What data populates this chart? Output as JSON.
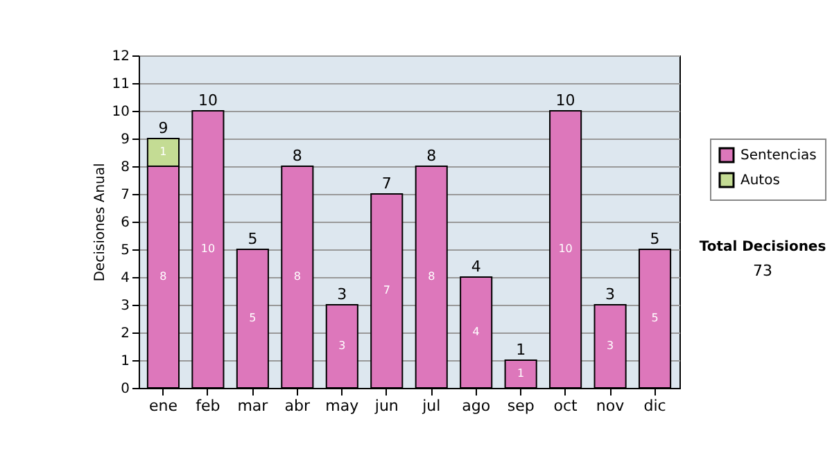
{
  "chart_data": {
    "type": "bar",
    "stacked": true,
    "ylabel": "Decisiones Anual",
    "categories": [
      "ene",
      "feb",
      "mar",
      "abr",
      "may",
      "jun",
      "jul",
      "ago",
      "sep",
      "oct",
      "nov",
      "dic"
    ],
    "series": [
      {
        "name": "Sentencias",
        "color": "#dd77bb",
        "values": [
          8,
          10,
          5,
          8,
          3,
          7,
          8,
          4,
          1,
          10,
          3,
          5
        ]
      },
      {
        "name": "Autos",
        "color": "#c4dc94",
        "values": [
          1,
          null,
          null,
          null,
          null,
          null,
          null,
          null,
          null,
          null,
          null,
          null
        ]
      }
    ],
    "totals": [
      "9",
      "10",
      "5",
      "8",
      "3",
      "7",
      "8",
      "4",
      "1",
      "10",
      "3",
      "5"
    ],
    "data_labels": true,
    "ylim": [
      0,
      12
    ],
    "yticks": [
      0,
      1,
      2,
      3,
      4,
      5,
      6,
      7,
      8,
      9,
      10,
      11,
      12
    ],
    "grid": "y",
    "legend": "right",
    "annotations": [
      "Total Decisiones",
      "73"
    ]
  }
}
